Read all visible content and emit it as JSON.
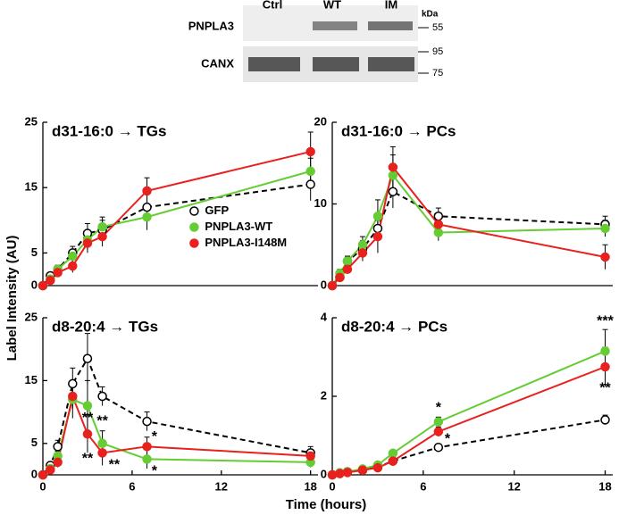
{
  "blot": {
    "lanes": [
      "Ctrl",
      "WT",
      "IM"
    ],
    "unit": "kDa",
    "rows": [
      "PNPLA3",
      "CANX"
    ],
    "markers": [
      55,
      95,
      75
    ]
  },
  "y_label": "Label Intensity (AU)",
  "x_label": "Time (hours)",
  "chart_data": [
    {
      "type": "line",
      "title": "d31-16:0 → TGs",
      "legend": "center-right",
      "x": [
        0,
        0.5,
        1,
        2,
        3,
        4,
        7,
        18
      ],
      "xlim": [
        0,
        18.5
      ],
      "ylim": [
        0,
        25
      ],
      "yticks": [
        0,
        5,
        15,
        25
      ],
      "series": [
        {
          "name": "GFP",
          "color": "#000000",
          "dashed": true,
          "open": true,
          "values": [
            0,
            1.5,
            2.5,
            5,
            8,
            8.5,
            12,
            15.5
          ],
          "errors": [
            0.2,
            0.5,
            0.6,
            1,
            1.5,
            1.5,
            2,
            2.5
          ]
        },
        {
          "name": "PNPLA3-WT",
          "color": "#66cc33",
          "values": [
            0,
            1,
            2.5,
            4.5,
            7,
            9,
            10.5,
            17.5
          ],
          "errors": [
            0.2,
            0.4,
            0.6,
            1,
            1.5,
            1.5,
            2,
            2
          ]
        },
        {
          "name": "PNPLA3-I148M",
          "color": "#e8201e",
          "values": [
            0,
            0.8,
            2,
            3,
            6.5,
            7.5,
            14.5,
            20.5
          ],
          "errors": [
            0.2,
            0.4,
            0.5,
            1,
            1.5,
            1.5,
            2,
            3
          ]
        }
      ]
    },
    {
      "type": "line",
      "title": "d31-16:0 → PCs",
      "x": [
        0,
        0.5,
        1,
        2,
        3,
        4,
        7,
        18
      ],
      "xlim": [
        0,
        18.5
      ],
      "ylim": [
        0,
        20
      ],
      "yticks": [
        0,
        10,
        20
      ],
      "series": [
        {
          "color": "#000000",
          "dashed": true,
          "open": true,
          "values": [
            0,
            1,
            3,
            4.5,
            7,
            11.5,
            8.5,
            7.5
          ],
          "errors": [
            0.2,
            0.5,
            0.6,
            1,
            1.5,
            2,
            1,
            1
          ]
        },
        {
          "color": "#66cc33",
          "values": [
            0,
            1.5,
            3,
            5,
            8.5,
            13.5,
            6.5,
            7
          ],
          "errors": [
            0.2,
            0.5,
            0.6,
            1,
            2,
            2.5,
            1,
            1
          ]
        },
        {
          "color": "#e8201e",
          "values": [
            0,
            1,
            2,
            4,
            6,
            14.5,
            7.5,
            3.5
          ],
          "errors": [
            0.2,
            0.4,
            0.5,
            1,
            2,
            2.5,
            1,
            1.5
          ]
        }
      ]
    },
    {
      "type": "line",
      "title": "d8-20:4 → TGs",
      "x": [
        0,
        0.5,
        1,
        2,
        3,
        4,
        7,
        18
      ],
      "xlim": [
        0,
        18.5
      ],
      "xticks": [
        0,
        6,
        12,
        18
      ],
      "ylim": [
        0,
        25
      ],
      "yticks": [
        0,
        5,
        15,
        25
      ],
      "annotations": [
        {
          "text": "**",
          "x": 3,
          "y": 9
        },
        {
          "text": "**",
          "x": 3,
          "y": 2.5
        },
        {
          "text": "**",
          "x": 4,
          "y": 8.5
        },
        {
          "text": "**",
          "x": 4.8,
          "y": 1.5
        },
        {
          "text": "*",
          "x": 7.5,
          "y": 6
        },
        {
          "text": "*",
          "x": 7.5,
          "y": 0.5
        }
      ],
      "series": [
        {
          "color": "#000000",
          "dashed": true,
          "open": true,
          "values": [
            0,
            1.5,
            4.5,
            14.5,
            18.5,
            12.5,
            8.5,
            3.5
          ],
          "errors": [
            0.2,
            0.5,
            1,
            2.5,
            4,
            1.5,
            1.5,
            1
          ]
        },
        {
          "color": "#66cc33",
          "values": [
            0,
            1,
            3,
            12,
            11,
            5,
            2.5,
            2
          ],
          "errors": [
            0.2,
            0.4,
            0.8,
            3,
            4,
            2,
            1.5,
            0.8
          ]
        },
        {
          "color": "#e8201e",
          "values": [
            0,
            0.8,
            2,
            12.5,
            6.5,
            3.5,
            4.5,
            3
          ],
          "errors": [
            0.2,
            0.4,
            0.8,
            2,
            3,
            2,
            1.5,
            0.8
          ]
        }
      ]
    },
    {
      "type": "line",
      "title": "d8-20:4 → PCs",
      "x": [
        0,
        0.5,
        1,
        2,
        3,
        4,
        7,
        18
      ],
      "xlim": [
        0,
        18.5
      ],
      "xticks": [
        0,
        6,
        12,
        18
      ],
      "ylim": [
        0,
        4
      ],
      "yticks": [
        0,
        2,
        4
      ],
      "annotations": [
        {
          "text": "*",
          "x": 7,
          "y": 1.7
        },
        {
          "text": "*",
          "x": 7.6,
          "y": 0.9
        },
        {
          "text": "***",
          "x": 18,
          "y": 3.9
        },
        {
          "text": "**",
          "x": 18,
          "y": 2.2
        }
      ],
      "series": [
        {
          "color": "#000000",
          "dashed": true,
          "open": true,
          "values": [
            0,
            0.05,
            0.08,
            0.12,
            0.2,
            0.35,
            0.7,
            1.4
          ],
          "errors": [
            0.02,
            0.03,
            0.03,
            0.04,
            0.05,
            0.06,
            0.08,
            0.12
          ]
        },
        {
          "color": "#66cc33",
          "values": [
            0,
            0.05,
            0.08,
            0.15,
            0.25,
            0.55,
            1.35,
            3.15
          ],
          "errors": [
            0.02,
            0.03,
            0.03,
            0.04,
            0.05,
            0.08,
            0.12,
            0.55
          ]
        },
        {
          "color": "#e8201e",
          "values": [
            0,
            0.03,
            0.06,
            0.12,
            0.18,
            0.35,
            1.1,
            2.75
          ],
          "errors": [
            0.02,
            0.03,
            0.03,
            0.04,
            0.05,
            0.08,
            0.12,
            0.5
          ]
        }
      ]
    }
  ]
}
